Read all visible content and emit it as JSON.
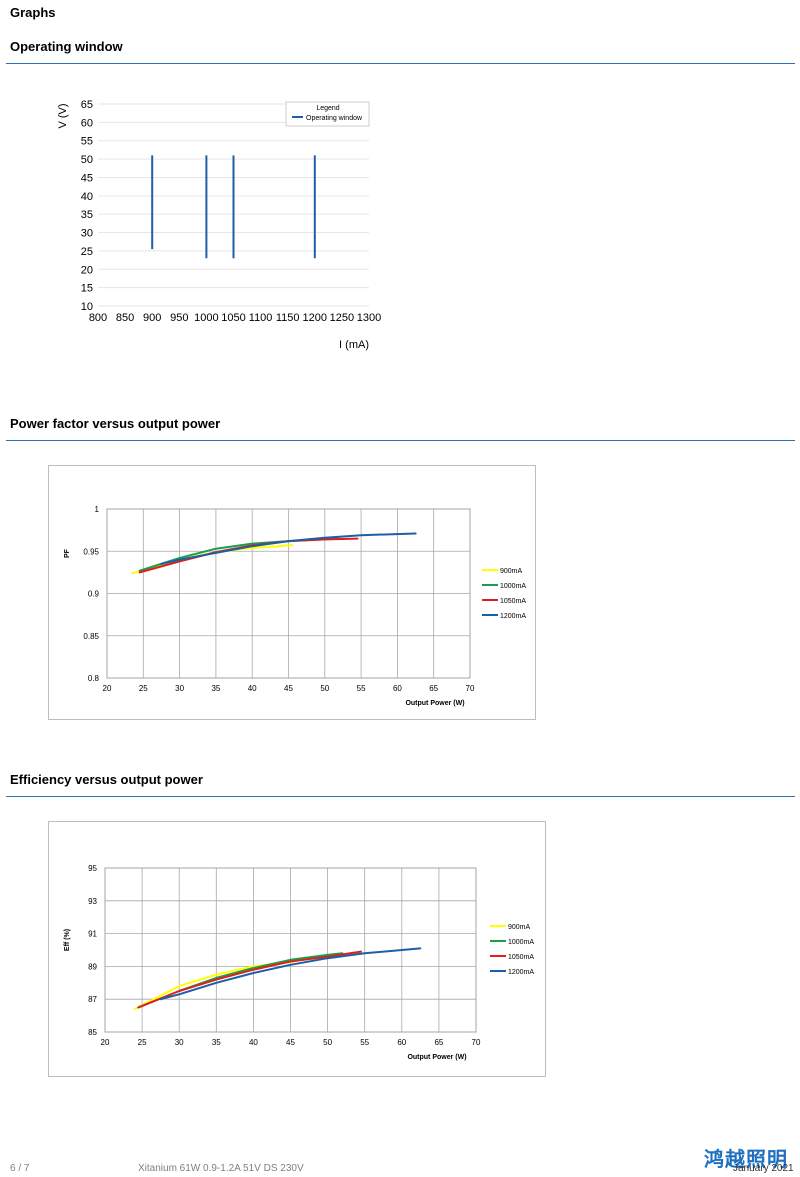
{
  "page_title": "Graphs",
  "sections": {
    "operating": {
      "title": "Operating window"
    },
    "pf": {
      "title": "Power factor versus output power"
    },
    "eff": {
      "title": "Efficiency versus output power"
    }
  },
  "footer": {
    "page": "6 / 7",
    "doc": "Xitanium 61W 0.9-1.2A 51V DS 230V",
    "date": "January 2021",
    "logo_text": "鸿越照明"
  },
  "colors": {
    "rule": "#2f6db5",
    "operating": "#1f5ea8",
    "s900": "#ffff00",
    "s1000": "#1a9e4a",
    "s1050": "#e0201c",
    "s1200": "#1a5fa8",
    "logo": "#1f6fc0"
  },
  "chart_data": [
    {
      "id": "operating",
      "type": "line",
      "title": "",
      "xlabel": "I (mA)",
      "ylabel": "V (V)",
      "xlim": [
        800,
        1300
      ],
      "ylim": [
        10,
        65
      ],
      "xticks": [
        800,
        850,
        900,
        950,
        1000,
        1050,
        1100,
        1150,
        1200,
        1250,
        1300
      ],
      "yticks": [
        10,
        15,
        20,
        25,
        30,
        35,
        40,
        45,
        50,
        55,
        60,
        65
      ],
      "grid": true,
      "legend": {
        "title": "Legend",
        "position": "top-right",
        "entries": [
          "Operating window"
        ]
      },
      "series": [
        {
          "name": "Operating window",
          "segments": [
            {
              "x": 900,
              "y": [
                25.5,
                51
              ]
            },
            {
              "x": 1000,
              "y": [
                23,
                51
              ]
            },
            {
              "x": 1050,
              "y": [
                23,
                51
              ]
            },
            {
              "x": 1200,
              "y": [
                23,
                51
              ]
            }
          ]
        }
      ]
    },
    {
      "id": "pf",
      "type": "line",
      "title": "",
      "xlabel": "Output Power (W)",
      "ylabel": "PF",
      "xlim": [
        20,
        70
      ],
      "ylim": [
        0.8,
        1
      ],
      "xticks": [
        20,
        25,
        30,
        35,
        40,
        45,
        50,
        55,
        60,
        65,
        70
      ],
      "yticks": [
        0.8,
        0.85,
        0.9,
        0.95,
        1
      ],
      "ytick_labels": [
        "0.8",
        "0.85",
        "0.9",
        "0.95",
        "1"
      ],
      "grid": true,
      "legend": {
        "position": "right"
      },
      "series": [
        {
          "name": "900mA",
          "x": [
            23.5,
            27,
            30,
            35,
            40,
            45.5
          ],
          "y": [
            0.924,
            0.932,
            0.94,
            0.949,
            0.954,
            0.957
          ]
        },
        {
          "name": "1000mA",
          "x": [
            24.5,
            30,
            35,
            40,
            45,
            50,
            52
          ],
          "y": [
            0.927,
            0.942,
            0.953,
            0.959,
            0.962,
            0.964,
            0.965
          ]
        },
        {
          "name": "1050mA",
          "x": [
            24.5,
            30,
            35,
            40,
            45,
            50,
            54.5
          ],
          "y": [
            0.925,
            0.938,
            0.949,
            0.957,
            0.962,
            0.964,
            0.965
          ]
        },
        {
          "name": "1200mA",
          "x": [
            27.5,
            30,
            35,
            40,
            45,
            50,
            55,
            62.5
          ],
          "y": [
            0.935,
            0.94,
            0.948,
            0.956,
            0.962,
            0.966,
            0.969,
            0.971
          ]
        }
      ]
    },
    {
      "id": "eff",
      "type": "line",
      "title": "",
      "xlabel": "Output Power (W)",
      "ylabel": "Eff (%)",
      "xlim": [
        20,
        70
      ],
      "ylim": [
        85,
        95
      ],
      "xticks": [
        20,
        25,
        30,
        35,
        40,
        45,
        50,
        55,
        60,
        65,
        70
      ],
      "yticks": [
        85,
        87,
        89,
        91,
        93,
        95
      ],
      "grid": true,
      "legend": {
        "position": "right"
      },
      "series": [
        {
          "name": "900mA",
          "x": [
            24,
            30,
            35,
            40,
            45.5
          ],
          "y": [
            86.4,
            87.8,
            88.5,
            89.0,
            89.3
          ]
        },
        {
          "name": "1000mA",
          "x": [
            24.5,
            30,
            35,
            40,
            45,
            50,
            52
          ],
          "y": [
            86.5,
            87.5,
            88.3,
            88.9,
            89.4,
            89.7,
            89.8
          ]
        },
        {
          "name": "1050mA",
          "x": [
            24.5,
            30,
            35,
            40,
            45,
            50,
            54.5
          ],
          "y": [
            86.5,
            87.5,
            88.2,
            88.8,
            89.3,
            89.6,
            89.9
          ]
        },
        {
          "name": "1200mA",
          "x": [
            27.5,
            30,
            35,
            40,
            45,
            50,
            55,
            62.5
          ],
          "y": [
            87.0,
            87.3,
            88.0,
            88.6,
            89.1,
            89.5,
            89.8,
            90.1
          ]
        }
      ]
    }
  ]
}
